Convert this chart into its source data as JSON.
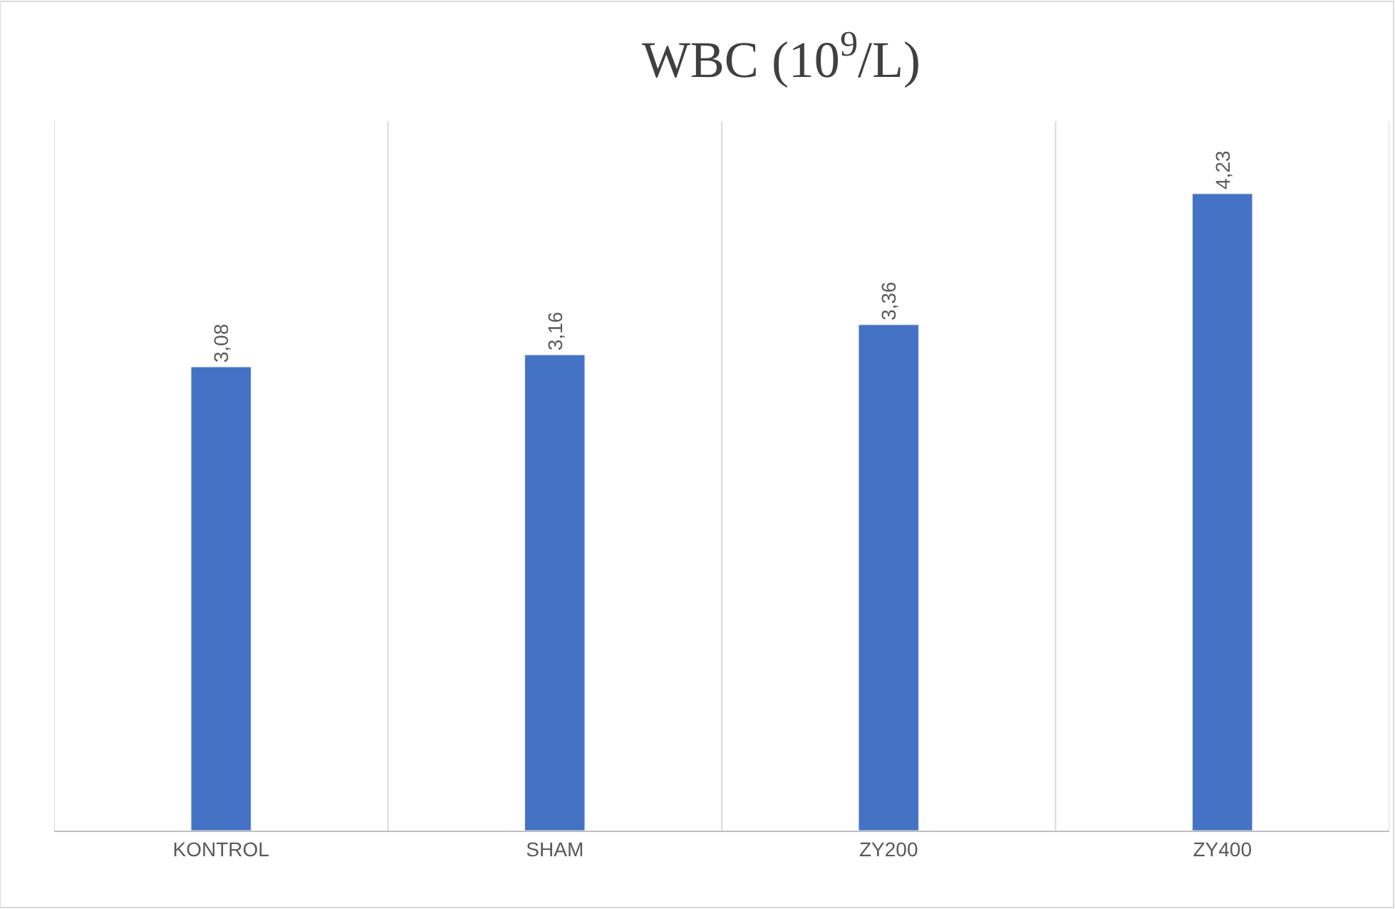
{
  "chart_data": {
    "type": "bar",
    "title": "WBC (10$^{9}$/L)",
    "categories": [
      "KONTROL",
      "SHAM",
      "ZY200",
      "ZY400"
    ],
    "values": [
      3.08,
      3.16,
      3.36,
      4.23
    ],
    "value_labels": [
      "3,08",
      "3,16",
      "3,36",
      "4,23"
    ],
    "color": "#4472c4",
    "tick_labels": "x",
    "grid": "x",
    "legend": false
  }
}
